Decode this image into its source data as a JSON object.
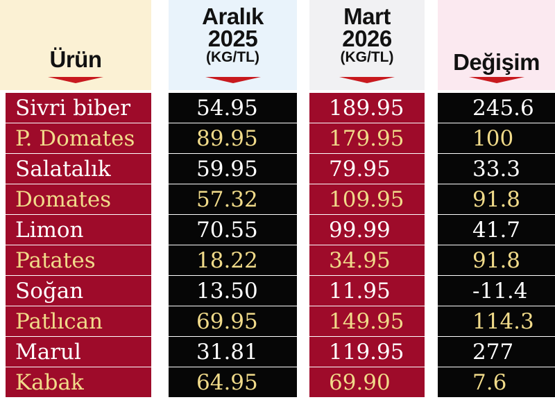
{
  "headers": {
    "product": "Ürün",
    "dec_line1": "Aralık",
    "dec_line2": "2025",
    "dec_unit": "(KG/TL)",
    "mar_line1": "Mart",
    "mar_line2": "2026",
    "mar_unit": "(KG/TL)",
    "change": "Değişim"
  },
  "rows": [
    {
      "product": "Sivri biber",
      "dec": "54.95",
      "mar": "189.95",
      "change": "245.6"
    },
    {
      "product": "P. Domates",
      "dec": "89.95",
      "mar": "179.95",
      "change": "100"
    },
    {
      "product": "Salatalık",
      "dec": "59.95",
      "mar": "79.95",
      "change": "33.3"
    },
    {
      "product": "Domates",
      "dec": "57.32",
      "mar": "109.95",
      "change": "91.8"
    },
    {
      "product": "Limon",
      "dec": "70.55",
      "mar": "99.99",
      "change": "41.7"
    },
    {
      "product": "Patates",
      "dec": "18.22",
      "mar": "34.95",
      "change": "91.8"
    },
    {
      "product": "Soğan",
      "dec": "13.50",
      "mar": "11.95",
      "change": "-11.4"
    },
    {
      "product": "Patlıcan",
      "dec": "69.95",
      "mar": "149.95",
      "change": "114.3"
    },
    {
      "product": "Marul",
      "dec": "31.81",
      "mar": "119.95",
      "change": "277"
    },
    {
      "product": "Kabak",
      "dec": "64.95",
      "mar": "69.90",
      "change": "7.6"
    }
  ],
  "colors": {
    "row_red": "#9e0b2a",
    "row_black": "#060606",
    "text_white": "#ffffff",
    "text_yellow": "#f1db8a",
    "arrow_red": "#c8191e"
  }
}
